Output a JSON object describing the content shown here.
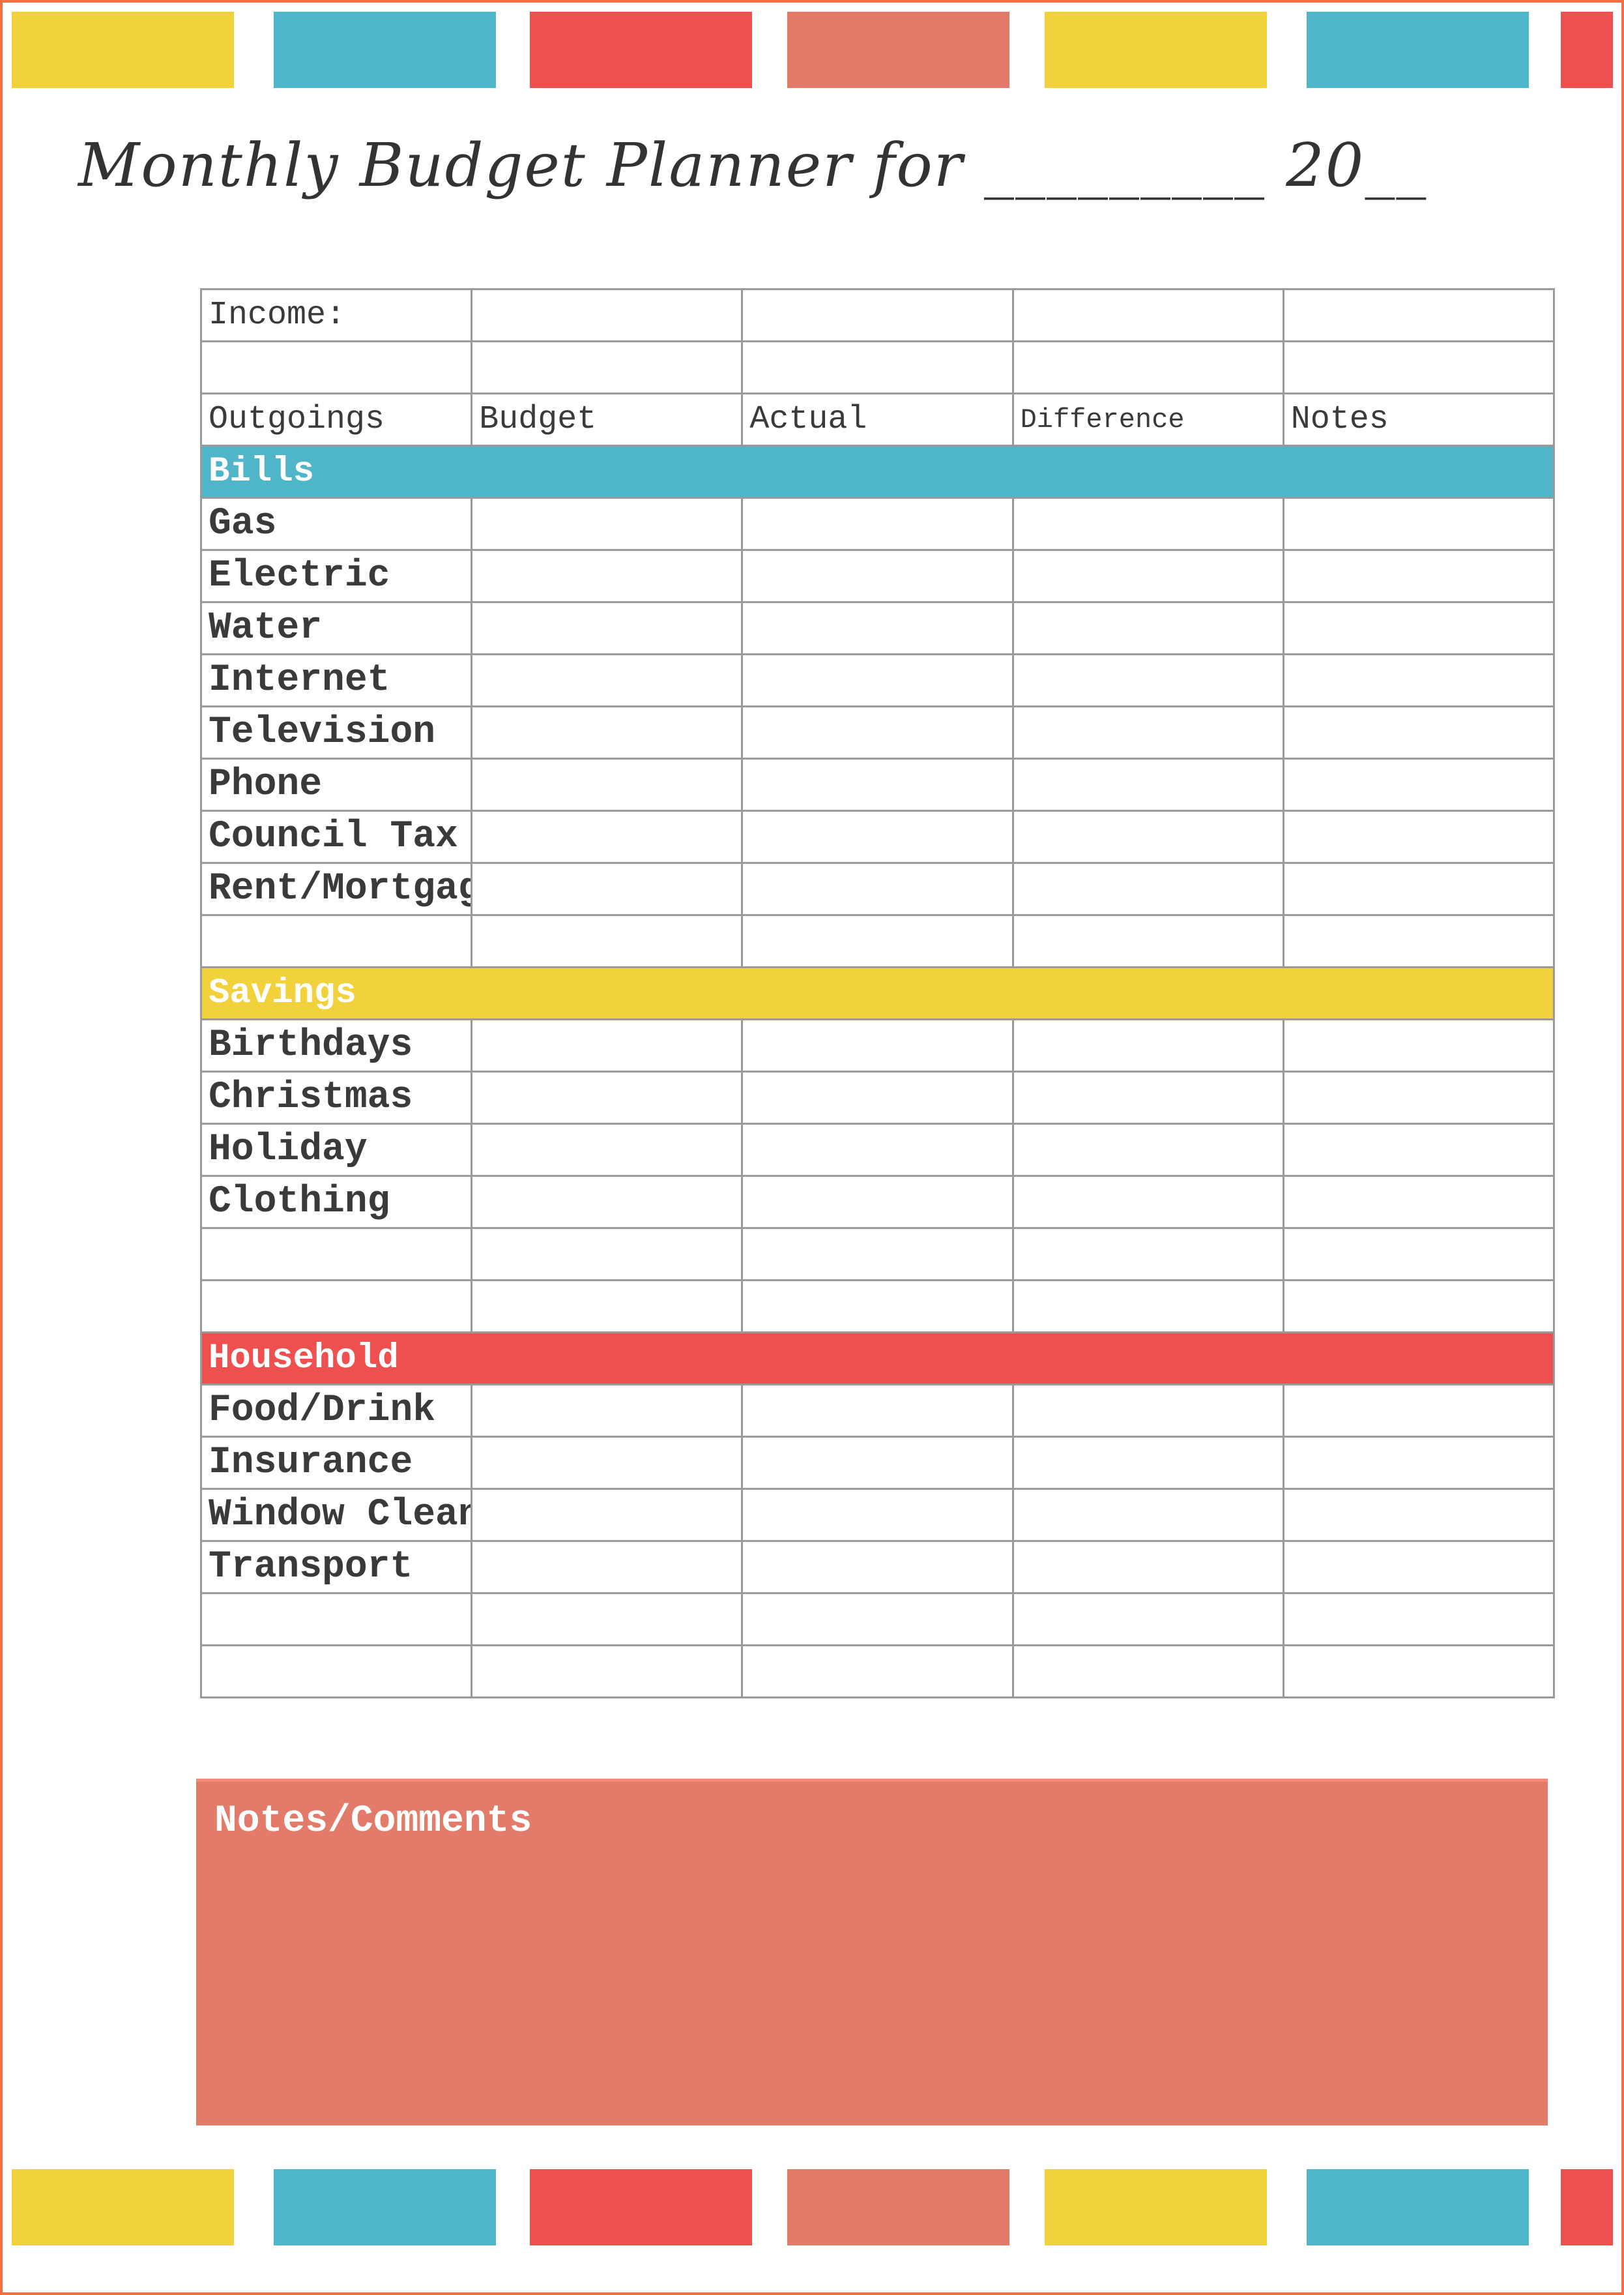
{
  "title": "Monthly Budget Planner for _________ 20__",
  "colors": {
    "yellow": "#F2D23C",
    "teal": "#4FB5C8",
    "red": "#EE5050",
    "salmon": "#E27B6A",
    "border": "#F07040"
  },
  "decor_bars": [
    "yellow",
    "teal",
    "red",
    "salmon",
    "yellow",
    "teal",
    "red"
  ],
  "table": {
    "income_label": "Income:",
    "headers": [
      "Outgoings",
      "Budget",
      "Actual",
      "Difference",
      "Notes"
    ],
    "sections": [
      {
        "label": "Bills",
        "color": "teal",
        "items": [
          "Gas",
          "Electric",
          "Water",
          "Internet",
          "Television",
          "Phone",
          "Council Tax",
          "Rent/Mortgage",
          ""
        ]
      },
      {
        "label": "Savings",
        "color": "yellow",
        "items": [
          "Birthdays",
          "Christmas",
          "Holiday",
          "Clothing",
          "",
          ""
        ]
      },
      {
        "label": "Household",
        "color": "red",
        "items": [
          "Food/Drink",
          "Insurance",
          "Window Cleaning",
          "Transport",
          "",
          ""
        ]
      }
    ]
  },
  "notes": {
    "label": "Notes/Comments"
  }
}
